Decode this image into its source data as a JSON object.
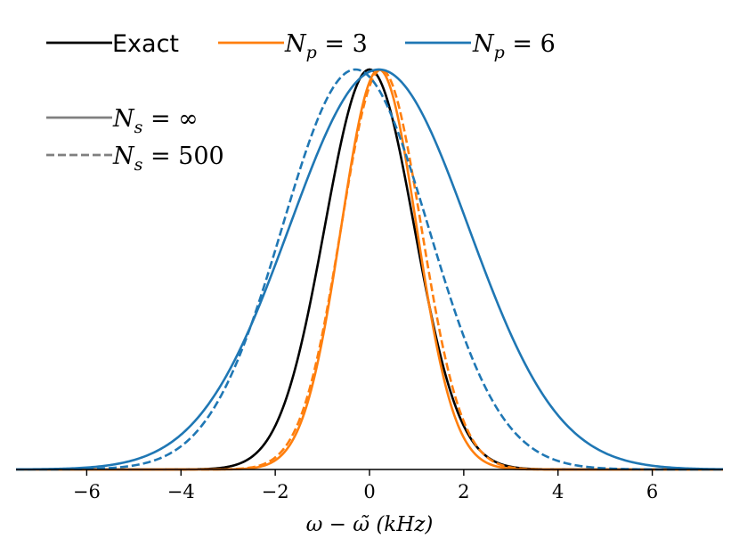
{
  "chart_data": {
    "type": "line",
    "xlabel": "ω − ω̃ (kHz)",
    "ylabel": "",
    "xlim": [
      -7.5,
      7.5
    ],
    "ylim": [
      0,
      1.0
    ],
    "x_ticks": [
      "−6",
      "−4",
      "−2",
      "0",
      "2",
      "4",
      "6"
    ],
    "x_tick_values": [
      -6,
      -4,
      -2,
      0,
      2,
      4,
      6
    ],
    "grid": false,
    "legend_top": {
      "placement": "top",
      "entries": [
        {
          "label_prefix": "Exact",
          "label_main": "",
          "label_sub": "",
          "label_suffix": "",
          "color": "#000000",
          "style": "solid"
        },
        {
          "label_prefix": "",
          "label_main": "N",
          "label_sub": "p",
          "label_suffix": " = 3",
          "color": "#ff7f0e",
          "style": "solid"
        },
        {
          "label_prefix": "",
          "label_main": "N",
          "label_sub": "p",
          "label_suffix": " = 6",
          "color": "#1f77b4",
          "style": "solid"
        }
      ]
    },
    "legend_style": {
      "placement": "upper-left",
      "entries": [
        {
          "label_main": "N",
          "label_sub": "s",
          "label_suffix": " = ∞",
          "color": "#808080",
          "style": "solid"
        },
        {
          "label_main": "N",
          "label_sub": "s",
          "label_suffix": " = 500",
          "color": "#808080",
          "style": "dashed"
        }
      ]
    },
    "series": [
      {
        "name": "Exact",
        "color": "#000000",
        "style": "solid",
        "center": 0.0,
        "sigma": 0.95,
        "shape": "gaussian"
      },
      {
        "name": "N_p = 3, N_s = ∞",
        "color": "#ff7f0e",
        "style": "solid",
        "center": 0.2,
        "sigma": 0.8,
        "shape": "gaussian"
      },
      {
        "name": "N_p = 3, N_s = 500",
        "color": "#ff7f0e",
        "style": "dashed",
        "center": 0.25,
        "sigma": 0.85,
        "shape": "gaussian"
      },
      {
        "name": "N_p = 6, N_s = ∞",
        "color": "#1f77b4",
        "style": "solid",
        "center": 0.2,
        "sigma": 1.9,
        "shape": "gaussian"
      },
      {
        "name": "N_p = 6, N_s = 500",
        "color": "#1f77b4",
        "style": "dashed",
        "center": -0.3,
        "sigma": 1.55,
        "shape": "gaussian"
      }
    ]
  }
}
